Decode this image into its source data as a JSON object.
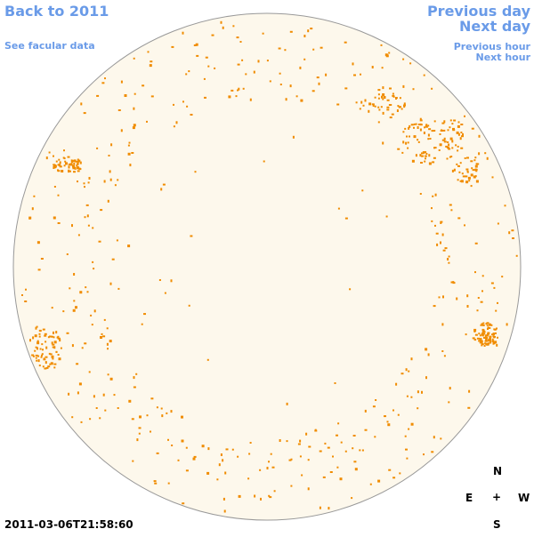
{
  "nav": {
    "back_label": "Back to 2011",
    "facular_label": "See facular data",
    "prev_day_label": "Previous day",
    "next_day_label": "Next day",
    "prev_hour_label": "Previous hour",
    "next_hour_label": "Next hour"
  },
  "compass": {
    "north": "N",
    "east": "E",
    "center": "+",
    "west": "W",
    "south": "S"
  },
  "timestamp": "2011-03-06T21:58:60",
  "colors": {
    "link": "#6a9be8",
    "disk_fill": "#fdf8ec",
    "disk_edge": "#999999",
    "facula": "#f08c00"
  },
  "image": {
    "subject": "solar-disk",
    "feature": "faculae"
  }
}
